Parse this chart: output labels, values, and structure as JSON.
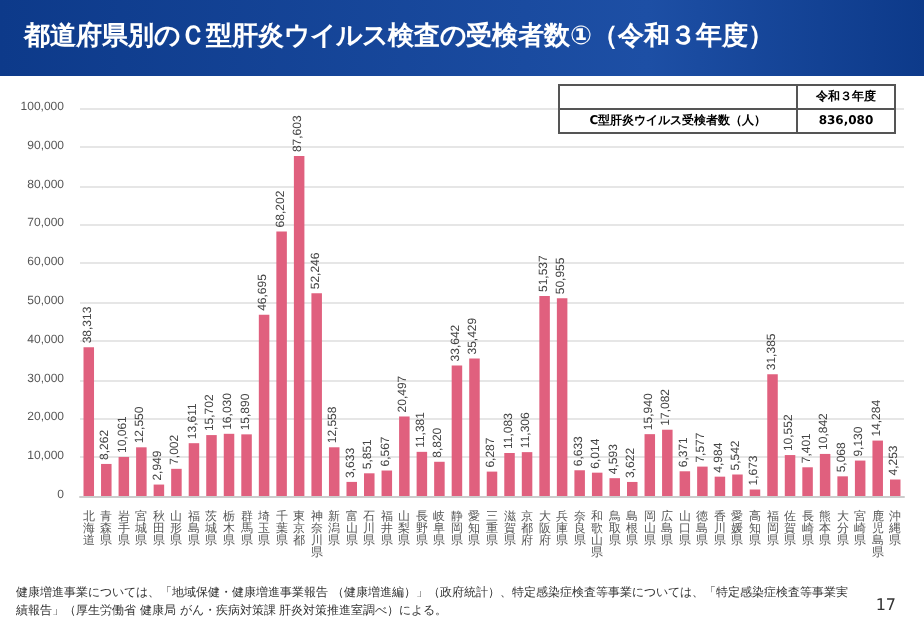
{
  "chart_data": {
    "type": "bar",
    "title": "都道府県別のＣ型肝炎ウイルス検査の受検者数①（令和３年度）",
    "categories": [
      "北海道",
      "青森県",
      "岩手県",
      "宮城県",
      "秋田県",
      "山形県",
      "福島県",
      "茨城県",
      "栃木県",
      "群馬県",
      "埼玉県",
      "千葉県",
      "東京都",
      "神奈川県",
      "新潟県",
      "富山県",
      "石川県",
      "福井県",
      "山梨県",
      "長野県",
      "岐阜県",
      "静岡県",
      "愛知県",
      "三重県",
      "滋賀県",
      "京都府",
      "大阪府",
      "兵庫県",
      "奈良県",
      "和歌山県",
      "鳥取県",
      "島根県",
      "岡山県",
      "広島県",
      "山口県",
      "徳島県",
      "香川県",
      "愛媛県",
      "高知県",
      "福岡県",
      "佐賀県",
      "長崎県",
      "熊本県",
      "大分県",
      "宮崎県",
      "鹿児島県",
      "沖縄県"
    ],
    "values": [
      38313,
      8262,
      10061,
      12550,
      2949,
      7002,
      13611,
      15702,
      16030,
      15890,
      46695,
      68202,
      87603,
      52246,
      12558,
      3633,
      5851,
      6567,
      20497,
      11381,
      8820,
      33642,
      35429,
      6287,
      11083,
      11306,
      51537,
      50955,
      6633,
      6014,
      4593,
      3622,
      15940,
      17082,
      6371,
      7577,
      4984,
      5542,
      1673,
      31385,
      10552,
      7401,
      10842,
      5068,
      9130,
      14284,
      4253
    ],
    "color": "#e0607e",
    "value_labels": [
      "38,313",
      "8,262",
      "10,061",
      "12,550",
      "2,949",
      "7,002",
      "13,611",
      "15,702",
      "16,030",
      "15,890",
      "46,695",
      "68,202",
      "87,603",
      "52,246",
      "12,558",
      "3,633",
      "5,851",
      "6,567",
      "20,497",
      "11,381",
      "8,820",
      "33,642",
      "35,429",
      "6,287",
      "11,083",
      "11,306",
      "51,537",
      "50,955",
      "6,633",
      "6,014",
      "4,593",
      "3,622",
      "15,940",
      "17,082",
      "6,371",
      "7,577",
      "4,984",
      "5,542",
      "1,673",
      "31,385",
      "10,552",
      "7,401",
      "10,842",
      "5,068",
      "9,130",
      "14,284",
      "4,253"
    ],
    "ylim": [
      0,
      100000
    ],
    "yticks": [
      0,
      {
        "value": 10000,
        "label": "10,000"
      },
      {
        "value": 20000,
        "label": "20,000"
      },
      {
        "value": 30000,
        "label": "30,000"
      },
      {
        "value": 40000,
        "label": "40,000"
      },
      {
        "value": 50000,
        "label": "50,000"
      },
      {
        "value": 60000,
        "label": "60,000"
      },
      {
        "value": 70000,
        "label": "70,000"
      },
      {
        "value": 80000,
        "label": "80,000"
      },
      {
        "value": 90000,
        "label": "90,000"
      },
      {
        "value": 100000,
        "label": "100,000"
      }
    ],
    "grid": "y",
    "annotations": [
      "令和３年度",
      "C型肝炎ウイルス受検者数（人）",
      "836,080",
      "健康増進事業については、「地域保健・健康増進事業報告 （健康増進編）」（政府統計）、特定感染症検査等事業については、「特定感染症検査等事業実績報告」（厚生労働省 健康局 がん・疾病対策課 肝炎対策推進室調べ）による。",
      "17"
    ]
  }
}
